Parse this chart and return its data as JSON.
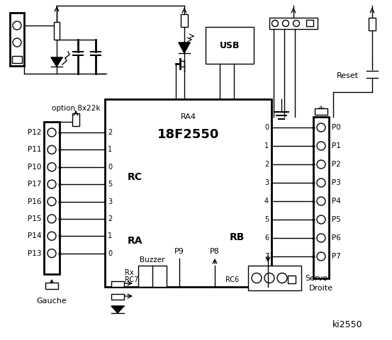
{
  "bg_color": "#ffffff",
  "title": "ki2550",
  "chip_label": "18F2550",
  "chip_sublabel": "RA4",
  "left_port_labels": [
    "P12",
    "P11",
    "P10",
    "P17",
    "P16",
    "P15",
    "P14",
    "P13"
  ],
  "right_port_labels": [
    "P0",
    "P1",
    "P2",
    "P3",
    "P4",
    "P5",
    "P6",
    "P7"
  ],
  "rc_pins": [
    "2",
    "1",
    "0",
    "5",
    "3",
    "2",
    "1",
    "0"
  ],
  "rb_pins": [
    "0",
    "1",
    "2",
    "3",
    "4",
    "5",
    "6",
    "7"
  ],
  "option_text": "option 8x22k",
  "left_label": "Gauche",
  "right_label": "Droite",
  "buzzer_label": "Buzzer",
  "p9_label": "P9",
  "p8_label": "P8",
  "servo_label": "Servo",
  "reset_label": "Reset",
  "usb_label": "USB",
  "rc_label": "RC",
  "ra_label": "RA",
  "rb_label": "RB",
  "rx_label": "Rx",
  "rc7_label": "RC7",
  "rc6_label": "RC6"
}
